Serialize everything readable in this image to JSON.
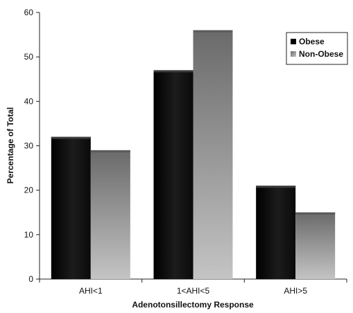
{
  "chart_data": {
    "type": "bar",
    "categories": [
      "AHI<1",
      "1<AHI<5",
      "AHI>5"
    ],
    "series": [
      {
        "name": "Obese",
        "values": [
          32,
          47,
          21
        ],
        "color": "#111111"
      },
      {
        "name": "Non-Obese",
        "values": [
          29,
          56,
          15
        ],
        "color": "#9a9a9a"
      }
    ],
    "title": "",
    "xlabel": "Adenotonsillectomy Response",
    "ylabel": "Percentage of Total",
    "ylim": [
      0,
      60
    ],
    "yticks": [
      0,
      10,
      20,
      30,
      40,
      50,
      60
    ],
    "grid": false,
    "legend_position": "top-right"
  }
}
